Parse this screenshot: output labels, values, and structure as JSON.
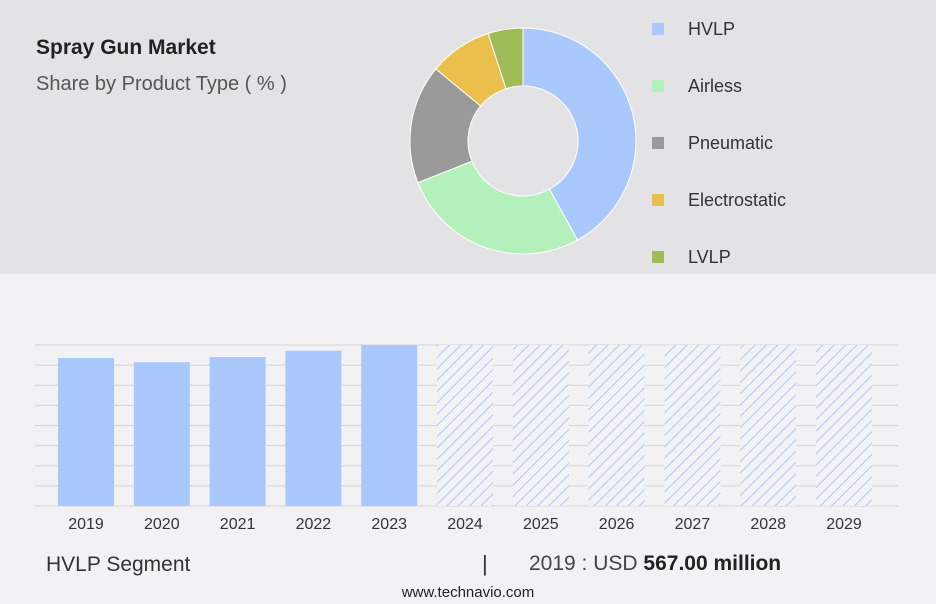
{
  "chart_data": [
    {
      "type": "pie",
      "title": "Spray Gun Market",
      "subtitle": "Share by Product Type ( % )",
      "legend_position": "right",
      "slices": [
        {
          "name": "HVLP",
          "value": 42,
          "color": "#a9c8fb"
        },
        {
          "name": "Airless",
          "value": 27,
          "color": "#b3f0bc"
        },
        {
          "name": "Pneumatic",
          "value": 17,
          "color": "#9a9a9a"
        },
        {
          "name": "Electrostatic",
          "value": 9,
          "color": "#eabf4b"
        },
        {
          "name": "LVLP",
          "value": 5,
          "color": "#a0bc59"
        }
      ]
    },
    {
      "type": "bar",
      "categories": [
        "2019",
        "2020",
        "2021",
        "2022",
        "2023",
        "2024",
        "2025",
        "2026",
        "2027",
        "2028",
        "2029"
      ],
      "series": [
        {
          "values": [
            567,
            551,
            571,
            595,
            617,
            null,
            null,
            null,
            null,
            null,
            null
          ],
          "color": "#a9c8fb"
        }
      ],
      "forecast_categories": [
        "2024",
        "2025",
        "2026",
        "2027",
        "2028",
        "2029"
      ],
      "forecast_style": "hatched",
      "ylim": [
        0,
        617
      ],
      "grid": true
    }
  ],
  "footer": {
    "segment_label": "HVLP Segment",
    "separator": "|",
    "value_prefix": "2019 : USD",
    "value": "567.00 million"
  },
  "source": "www.technavio.com"
}
